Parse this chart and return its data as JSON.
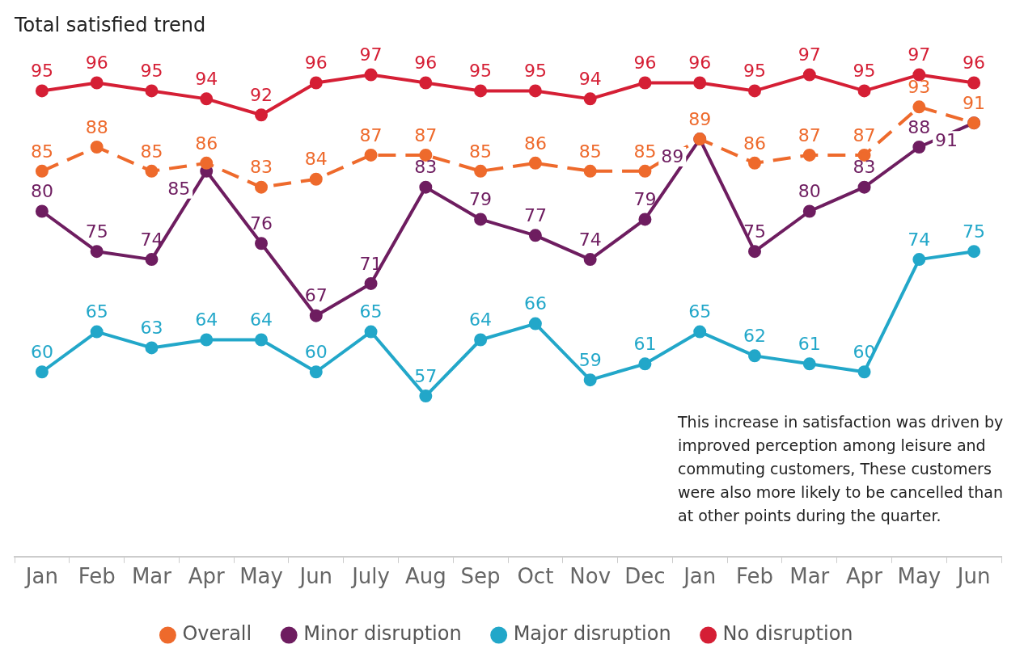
{
  "chart_data": {
    "type": "line",
    "title": "Total satisfied trend",
    "categories": [
      "Jan",
      "Feb",
      "Mar",
      "Apr",
      "May",
      "Jun",
      "July",
      "Aug",
      "Sep",
      "Oct",
      "Nov",
      "Dec",
      "Jan",
      "Feb",
      "Mar",
      "Apr",
      "May",
      "Jun"
    ],
    "series": [
      {
        "name": "Overall",
        "color": "#ee6a2c",
        "line_style": "dashed",
        "values": [
          85,
          88,
          85,
          86,
          83,
          84,
          87,
          87,
          85,
          86,
          85,
          85,
          89,
          86,
          87,
          87,
          93,
          91
        ]
      },
      {
        "name": "Minor disruption",
        "color": "#6e1d60",
        "line_style": "solid",
        "values": [
          80,
          75,
          74,
          85,
          76,
          67,
          71,
          83,
          79,
          77,
          74,
          79,
          89,
          75,
          80,
          83,
          88,
          91
        ]
      },
      {
        "name": "Major disruption",
        "color": "#22a7c9",
        "line_style": "solid",
        "values": [
          60,
          65,
          63,
          64,
          64,
          60,
          65,
          57,
          64,
          66,
          59,
          61,
          65,
          62,
          61,
          60,
          74,
          75
        ]
      },
      {
        "name": "No disruption",
        "color": "#d51f35",
        "line_style": "solid",
        "values": [
          95,
          96,
          95,
          94,
          92,
          96,
          97,
          96,
          95,
          95,
          94,
          96,
          96,
          95,
          97,
          95,
          97,
          96
        ]
      }
    ],
    "data_labels": true,
    "marker": "circle",
    "grid": false,
    "legend": "bottom",
    "tick_labels": "x",
    "annotations": [
      "This increase in satisfaction was driven by improved perception among leisure and commuting customers, These customers were also more likely to be cancelled than at other points during the quarter."
    ]
  }
}
